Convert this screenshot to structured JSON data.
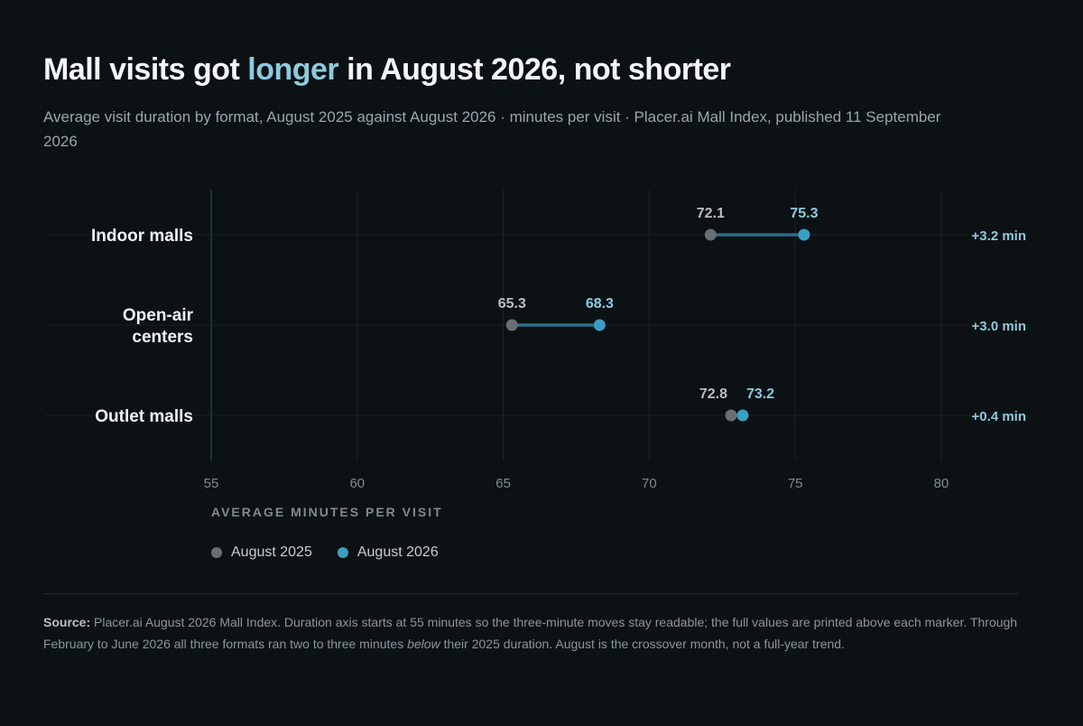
{
  "header": {
    "title_before": "Mall visits got ",
    "title_accent": "longer",
    "title_after": " in August 2026, not shorter",
    "subtitle": "Average visit duration by format, August 2025 against August 2026 · minutes per visit · Placer.ai Mall Index, published 11 September 2026"
  },
  "chart_data": {
    "type": "dumbbell",
    "categories": [
      {
        "label_lines": [
          "Indoor malls"
        ],
        "v2025": 72.1,
        "v2026": 75.3,
        "change": "+3.2 min"
      },
      {
        "label_lines": [
          "Open-air",
          "centers"
        ],
        "v2025": 65.3,
        "v2026": 68.3,
        "change": "+3.0 min"
      },
      {
        "label_lines": [
          "Outlet malls"
        ],
        "v2025": 72.8,
        "v2026": 73.2,
        "change": "+0.4 min"
      }
    ],
    "series": [
      {
        "name": "August 2025",
        "key": "v2025",
        "color": "#676e74"
      },
      {
        "name": "August 2026",
        "key": "v2026",
        "color": "#3a9fc2"
      }
    ],
    "xlim": [
      55,
      80
    ],
    "xticks": [
      55,
      60,
      65,
      70,
      75,
      80
    ],
    "xlabel": "AVERAGE MINUTES PER VISIT",
    "connector_color": "#2b6d86",
    "label_2026_color": "#8ec9dd",
    "change_color": "#8ec9dd",
    "grid": true
  },
  "footnote": {
    "label": "Source:",
    "text_before": " Placer.ai August 2026 Mall Index. Duration axis starts at 55 minutes so the three-minute moves stay readable; the full values are printed above each marker. Through February to June 2026 all three formats ran two to three minutes ",
    "emphasis": "below",
    "text_after": " their 2025 duration. August is the crossover month, not a full-year trend."
  }
}
